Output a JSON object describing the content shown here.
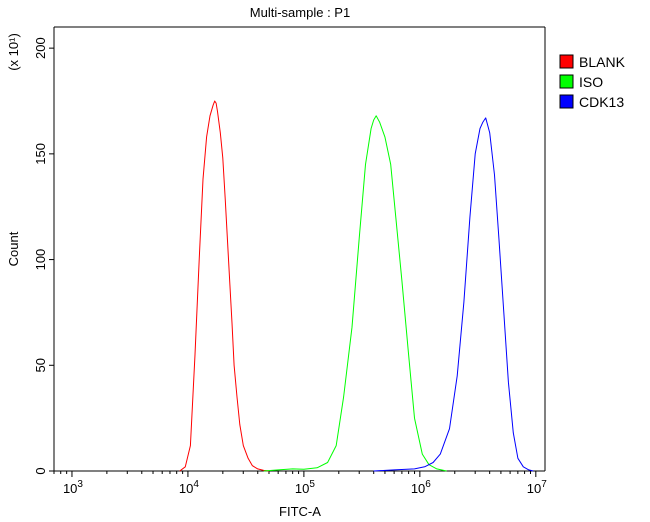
{
  "chart_data": {
    "type": "line",
    "title": "Multi-sample : P1",
    "xlabel": "FITC-A",
    "ylabel": "Count",
    "y_multiplier_label": "(x 10¹)",
    "x_scale": "log",
    "xlim": [
      700,
      12000000
    ],
    "ylim": [
      0,
      210
    ],
    "x_ticks": [
      1000,
      10000,
      100000,
      1000000,
      10000000
    ],
    "x_tick_labels": [
      {
        "base": "10",
        "exp": "3"
      },
      {
        "base": "10",
        "exp": "4"
      },
      {
        "base": "10",
        "exp": "5"
      },
      {
        "base": "10",
        "exp": "6"
      },
      {
        "base": "10",
        "exp": "7"
      }
    ],
    "y_ticks": [
      0,
      50,
      100,
      150,
      200
    ],
    "y_tick_labels": [
      "0",
      "50",
      "100",
      "150",
      "200"
    ],
    "grid": false,
    "legend_position": "right",
    "series": [
      {
        "name": "BLANK",
        "color": "#ff0000",
        "x": [
          8500,
          9500,
          10500,
          11500,
          12500,
          13500,
          14500,
          15500,
          16500,
          17000,
          17500,
          18000,
          19000,
          20000,
          21000,
          22000,
          23000,
          24000,
          25000,
          26500,
          28000,
          30000,
          33000,
          36000,
          40000,
          45000,
          50000
        ],
        "y": [
          0,
          2,
          12,
          55,
          100,
          138,
          158,
          168,
          173,
          175,
          174,
          170,
          160,
          148,
          128,
          108,
          88,
          70,
          50,
          35,
          22,
          12,
          6,
          2.5,
          1,
          0.3,
          0
        ]
      },
      {
        "name": "ISO",
        "color": "#00ff00",
        "x": [
          45000,
          60000,
          80000,
          100000,
          130000,
          160000,
          190000,
          220000,
          260000,
          300000,
          340000,
          380000,
          400000,
          420000,
          450000,
          500000,
          560000,
          620000,
          700000,
          800000,
          900000,
          1050000,
          1200000,
          1400000,
          1700000
        ],
        "y": [
          0,
          0.5,
          1,
          0.8,
          1.5,
          4,
          12,
          35,
          68,
          110,
          145,
          162,
          166,
          168,
          165,
          158,
          145,
          120,
          90,
          55,
          25,
          8,
          3,
          1,
          0
        ]
      },
      {
        "name": "CDK13",
        "color": "#0000ff",
        "x": [
          400000,
          600000,
          900000,
          1100000,
          1300000,
          1500000,
          1800000,
          2100000,
          2400000,
          2700000,
          3000000,
          3300000,
          3500000,
          3700000,
          4000000,
          4400000,
          4800000,
          5300000,
          5800000,
          6400000,
          7000000,
          7800000,
          8700000,
          9500000
        ],
        "y": [
          0,
          0.5,
          1,
          2,
          4,
          8,
          20,
          45,
          80,
          120,
          150,
          162,
          165,
          167,
          160,
          140,
          110,
          75,
          42,
          18,
          6,
          2,
          0.5,
          0
        ]
      }
    ]
  }
}
